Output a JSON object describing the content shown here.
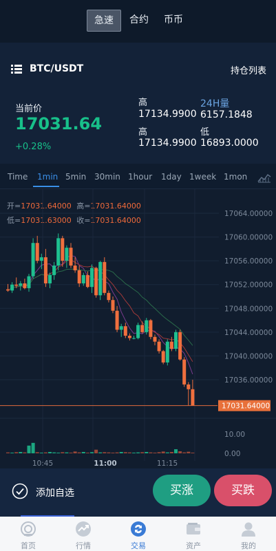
{
  "top_tabs": [
    "急速",
    "合约",
    "币币"
  ],
  "pair": "BTC/USDT",
  "holdings_label": "持仓列表",
  "current_price_label": "当前价",
  "current_price": "17031.64",
  "change_pct": "+0.28%",
  "stats": {
    "high1_label": "高",
    "high1_value": "17134.9900",
    "vol_label": "24H量",
    "vol_value": "6157.1848",
    "high2_label": "高",
    "high2_value": "17134.9900",
    "low_label": "低",
    "low_value": "16893.0000"
  },
  "intervals": [
    "Time",
    "1min",
    "5min",
    "30min",
    "1hour",
    "1day",
    "1week",
    "1mon"
  ],
  "ohlc": {
    "open_label": "开=",
    "open": "17031.64000",
    "high_label": "高=",
    "high": "17031.64000",
    "low_label": "低=",
    "low": "17031.63000",
    "close_label": "收=",
    "close": "17031.64000"
  },
  "chart": {
    "y_ticks": [
      "17064.00000",
      "17060.00000",
      "17056.00000",
      "17052.00000",
      "17048.00000",
      "17044.00000",
      "17040.00000",
      "17036.00000"
    ],
    "last_price": "17031.64000",
    "vol_ticks": [
      "10.00",
      "0.00"
    ],
    "x_ticks": [
      "10:45",
      "11:00",
      "11:15"
    ],
    "colors": {
      "up": "#1fbf8f",
      "down": "#ef6f3e"
    }
  },
  "chart_data": {
    "type": "candlestick",
    "y_min": 17031,
    "y_max": 17066,
    "candles": [
      [
        17051.2,
        17052.1,
        17050.8,
        17051.0
      ],
      [
        17051.0,
        17052.4,
        17050.6,
        17052.0
      ],
      [
        17052.0,
        17053.2,
        17051.4,
        17051.8
      ],
      [
        17051.8,
        17052.6,
        17051.0,
        17052.2
      ],
      [
        17052.2,
        17053.0,
        17051.2,
        17051.4
      ],
      [
        17051.4,
        17053.8,
        17050.8,
        17053.4
      ],
      [
        17053.4,
        17059.8,
        17053.0,
        17059.0
      ],
      [
        17059.0,
        17060.2,
        17055.6,
        17056.0
      ],
      [
        17056.0,
        17057.2,
        17054.6,
        17056.6
      ],
      [
        17056.6,
        17058.0,
        17051.6,
        17052.2
      ],
      [
        17052.2,
        17054.0,
        17051.4,
        17053.6
      ],
      [
        17053.6,
        17055.8,
        17052.8,
        17055.2
      ],
      [
        17055.2,
        17060.6,
        17054.4,
        17059.8
      ],
      [
        17059.8,
        17060.2,
        17055.0,
        17056.0
      ],
      [
        17056.0,
        17058.6,
        17054.8,
        17058.2
      ],
      [
        17058.2,
        17059.0,
        17054.8,
        17055.2
      ],
      [
        17055.2,
        17056.6,
        17054.0,
        17054.4
      ],
      [
        17054.4,
        17055.2,
        17051.6,
        17052.2
      ],
      [
        17052.2,
        17054.0,
        17051.8,
        17053.6
      ],
      [
        17053.6,
        17054.2,
        17051.4,
        17051.6
      ],
      [
        17051.6,
        17055.4,
        17050.6,
        17054.8
      ],
      [
        17054.8,
        17055.0,
        17049.8,
        17050.2
      ],
      [
        17050.2,
        17056.0,
        17049.4,
        17055.8
      ],
      [
        17055.8,
        17056.6,
        17050.2,
        17050.6
      ],
      [
        17050.6,
        17051.0,
        17049.0,
        17049.4
      ],
      [
        17049.4,
        17050.0,
        17047.2,
        17047.6
      ],
      [
        17047.6,
        17048.4,
        17044.0,
        17044.4
      ],
      [
        17044.4,
        17045.4,
        17043.2,
        17045.0
      ],
      [
        17045.0,
        17045.6,
        17043.0,
        17043.4
      ],
      [
        17043.4,
        17043.8,
        17042.6,
        17043.0
      ],
      [
        17043.0,
        17043.4,
        17042.8,
        17043.0
      ],
      [
        17043.0,
        17045.6,
        17042.8,
        17045.2
      ],
      [
        17045.2,
        17045.8,
        17043.8,
        17044.0
      ],
      [
        17044.0,
        17046.4,
        17043.6,
        17046.0
      ],
      [
        17046.0,
        17046.2,
        17042.8,
        17043.2
      ],
      [
        17043.2,
        17043.6,
        17041.8,
        17042.4
      ],
      [
        17042.4,
        17042.8,
        17040.4,
        17040.8
      ],
      [
        17040.8,
        17041.0,
        17038.6,
        17038.9
      ],
      [
        17038.9,
        17042.8,
        17038.4,
        17042.4
      ],
      [
        17042.4,
        17043.2,
        17040.8,
        17041.2
      ],
      [
        17041.2,
        17044.4,
        17040.8,
        17044.0
      ],
      [
        17044.0,
        17044.4,
        17039.2,
        17039.4
      ],
      [
        17039.4,
        17039.8,
        17034.8,
        17035.2
      ],
      [
        17035.2,
        17035.6,
        17031.6,
        17034.4
      ],
      [
        17034.4,
        17036.0,
        17031.6,
        17031.64
      ]
    ],
    "volumes": [
      0.4,
      0.3,
      0.5,
      0.6,
      0.4,
      3.4,
      4.6,
      0.5,
      0.3,
      0.4,
      0.6,
      0.4,
      0.3,
      0.5,
      0.4,
      0.3,
      0.8,
      0.4,
      0.6,
      0.3,
      0.5,
      1.6,
      0.4,
      0.5,
      0.4,
      0.3,
      0.4,
      0.6,
      0.5,
      0.4,
      0.3,
      0.4,
      0.5,
      0.6,
      0.4,
      0.3,
      0.5,
      0.8,
      0.4,
      0.6,
      1.8,
      0.9,
      0.4,
      0.7,
      0.3
    ],
    "ma_series": [
      "ma-fast",
      "ma-mid",
      "ma-slow"
    ]
  },
  "bottom": {
    "favorite_label": "添加自选",
    "buy_label": "买涨",
    "sell_label": "买跌"
  },
  "nav": [
    "首页",
    "行情",
    "交易",
    "资产",
    "我的"
  ]
}
